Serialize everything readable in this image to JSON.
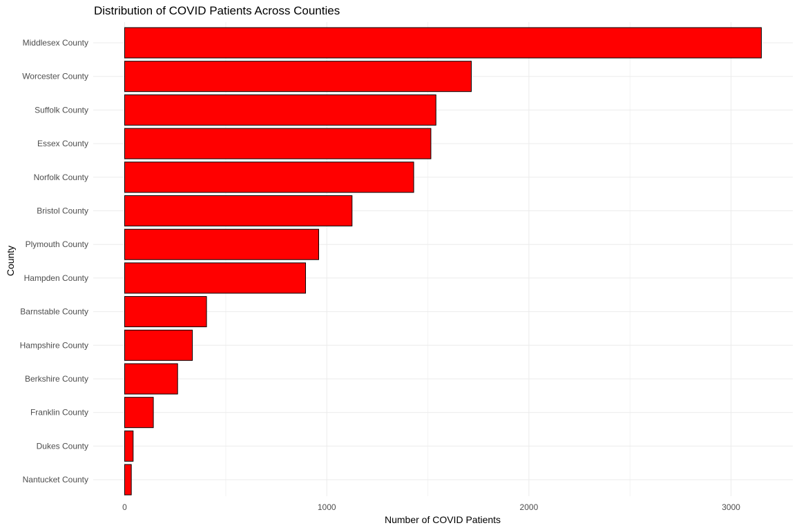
{
  "chart_data": {
    "type": "bar",
    "orientation": "horizontal",
    "title": "Distribution of COVID Patients Across Counties",
    "xlabel": "Number of COVID Patients",
    "ylabel": "County",
    "categories": [
      "Middlesex County",
      "Worcester County",
      "Suffolk County",
      "Essex County",
      "Norfolk County",
      "Bristol County",
      "Plymouth County",
      "Hampden County",
      "Barnstable County",
      "Hampshire County",
      "Berkshire County",
      "Franklin County",
      "Dukes County",
      "Nantucket County"
    ],
    "values": [
      3150,
      1715,
      1540,
      1515,
      1430,
      1125,
      960,
      895,
      405,
      335,
      262,
      142,
      42,
      33
    ],
    "xlim": [
      -70,
      3300
    ],
    "x_ticks": [
      0,
      1000,
      2000,
      3000
    ],
    "x_tick_labels": [
      "0",
      "1000",
      "2000",
      "3000"
    ],
    "bar_fill": "#ff0000",
    "bar_outline": "#000000",
    "grid": true,
    "legend": "none"
  }
}
